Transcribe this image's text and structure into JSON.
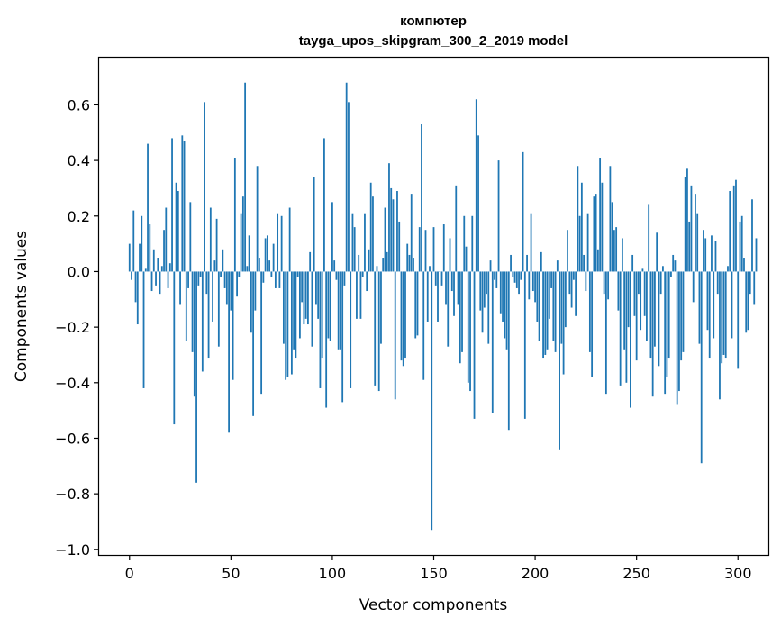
{
  "chart_data": {
    "type": "bar",
    "title": "компютер",
    "subtitle": "tayga_upos_skipgram_300_2_2019 model",
    "xlabel": "Vector components",
    "ylabel": "Components values",
    "xlim": [
      -15,
      315
    ],
    "ylim": [
      -1.02,
      0.77
    ],
    "xticks": [
      0,
      50,
      100,
      150,
      200,
      250,
      300
    ],
    "xtick_labels": [
      "0",
      "50",
      "100",
      "150",
      "200",
      "250",
      "300"
    ],
    "yticks": [
      -1.0,
      -0.8,
      -0.6,
      -0.4,
      -0.2,
      0.0,
      0.2,
      0.4,
      0.6
    ],
    "ytick_labels": [
      "−1.0",
      "−0.8",
      "−0.6",
      "−0.4",
      "−0.2",
      "0.0",
      "0.2",
      "0.4",
      "0.6"
    ],
    "bar_color": "#1f77b4",
    "grid": false,
    "values": [
      0.1,
      -0.03,
      0.22,
      -0.11,
      -0.19,
      0.1,
      0.2,
      -0.42,
      0.01,
      0.46,
      0.17,
      -0.07,
      0.08,
      -0.05,
      0.05,
      -0.08,
      0.02,
      0.15,
      0.23,
      -0.06,
      0.03,
      0.48,
      -0.55,
      0.32,
      0.29,
      -0.12,
      0.49,
      0.47,
      -0.25,
      -0.06,
      0.25,
      -0.29,
      -0.45,
      -0.76,
      -0.05,
      -0.02,
      -0.36,
      0.61,
      -0.08,
      -0.31,
      0.23,
      -0.18,
      0.04,
      0.19,
      -0.27,
      -0.02,
      0.08,
      -0.06,
      -0.12,
      -0.58,
      -0.14,
      -0.39,
      0.41,
      -0.09,
      -0.02,
      0.21,
      0.27,
      0.68,
      0.02,
      0.13,
      -0.22,
      -0.52,
      -0.14,
      0.38,
      0.05,
      -0.44,
      -0.04,
      0.12,
      0.13,
      0.04,
      -0.02,
      0.1,
      -0.06,
      0.21,
      -0.06,
      0.2,
      -0.26,
      -0.39,
      -0.38,
      0.23,
      -0.37,
      -0.28,
      -0.31,
      -0.02,
      -0.24,
      -0.11,
      -0.19,
      -0.17,
      -0.19,
      0.07,
      -0.27,
      0.34,
      -0.12,
      -0.17,
      -0.42,
      -0.31,
      0.48,
      -0.49,
      -0.24,
      -0.25,
      0.25,
      0.04,
      -0.03,
      -0.28,
      -0.28,
      -0.47,
      -0.05,
      0.68,
      0.61,
      -0.42,
      0.21,
      0.16,
      -0.17,
      0.06,
      -0.17,
      -0.02,
      0.21,
      -0.07,
      0.08,
      0.32,
      0.27,
      -0.41,
      0.02,
      -0.43,
      -0.26,
      0.05,
      0.23,
      0.07,
      0.39,
      0.3,
      0.26,
      -0.46,
      0.29,
      0.18,
      -0.32,
      -0.34,
      -0.31,
      0.1,
      0.06,
      0.28,
      0.05,
      -0.24,
      -0.23,
      0.16,
      0.53,
      -0.39,
      0.15,
      -0.18,
      0.02,
      -0.93,
      0.16,
      -0.05,
      -0.18,
      0.0,
      -0.05,
      0.17,
      -0.12,
      -0.27,
      0.12,
      -0.07,
      -0.16,
      0.31,
      -0.12,
      -0.33,
      -0.29,
      0.2,
      0.09,
      -0.4,
      -0.43,
      0.2,
      -0.53,
      0.62,
      0.49,
      -0.14,
      -0.22,
      -0.13,
      -0.08,
      -0.26,
      0.04,
      -0.51,
      -0.03,
      -0.06,
      0.4,
      -0.15,
      -0.18,
      -0.24,
      -0.28,
      -0.57,
      0.06,
      -0.02,
      -0.04,
      -0.06,
      -0.08,
      -0.03,
      0.43,
      -0.53,
      0.06,
      -0.1,
      0.21,
      -0.07,
      -0.11,
      -0.18,
      -0.25,
      0.07,
      -0.31,
      -0.3,
      -0.28,
      -0.17,
      -0.06,
      -0.25,
      -0.29,
      0.04,
      -0.64,
      -0.26,
      -0.37,
      -0.2,
      0.15,
      -0.08,
      -0.13,
      -0.03,
      -0.16,
      0.38,
      0.2,
      0.32,
      0.06,
      -0.07,
      0.21,
      -0.29,
      -0.38,
      0.27,
      0.28,
      0.08,
      0.41,
      0.32,
      -0.08,
      -0.44,
      -0.1,
      0.38,
      0.25,
      0.15,
      0.16,
      -0.14,
      -0.41,
      0.12,
      -0.28,
      -0.4,
      -0.2,
      -0.49,
      0.06,
      -0.16,
      -0.32,
      -0.08,
      -0.21,
      0.01,
      -0.16,
      -0.25,
      0.24,
      -0.31,
      -0.45,
      -0.27,
      0.14,
      -0.34,
      -0.08,
      0.02,
      -0.44,
      -0.38,
      -0.31,
      -0.02,
      0.06,
      0.04,
      -0.48,
      -0.43,
      -0.32,
      -0.29,
      0.34,
      0.37,
      0.18,
      0.31,
      -0.11,
      0.28,
      0.21,
      -0.26,
      -0.69,
      0.15,
      0.12,
      -0.21,
      -0.31,
      0.13,
      -0.24,
      0.11,
      -0.08,
      -0.46,
      -0.33,
      -0.3,
      -0.31,
      0.02,
      0.29,
      -0.24,
      0.31,
      0.33,
      -0.35,
      0.18,
      0.2,
      0.05,
      -0.22,
      -0.21,
      -0.08,
      0.26,
      -0.12,
      0.12
    ]
  }
}
